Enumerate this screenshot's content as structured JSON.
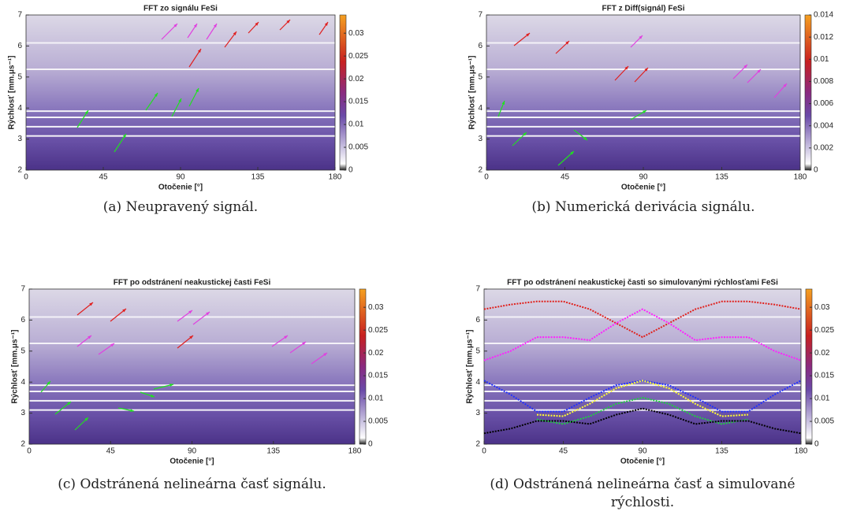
{
  "chart_data": [
    {
      "type": "heatmap",
      "title": "FFT zo signálu FeSi",
      "xlabel": "Otočenie [°]",
      "ylabel": "Rýchlosť [mm.μs⁻¹]",
      "xlim": [
        0,
        180
      ],
      "xticks": [
        0,
        45,
        90,
        135,
        180
      ],
      "ylim": [
        2,
        7
      ],
      "yticks": [
        2,
        3,
        4,
        5,
        6,
        7
      ],
      "clim": [
        0,
        0.034
      ],
      "cticks": [
        0,
        0.005,
        0.01,
        0.015,
        0.02,
        0.025,
        0.03
      ],
      "caption": "(a) Neupravený signál."
    },
    {
      "type": "heatmap",
      "title": "FFT z Diff(signál) FeSi",
      "xlabel": "Otočenie [°]",
      "ylabel": "Rýchlosť [mm.μs⁻¹]",
      "xlim": [
        0,
        180
      ],
      "xticks": [
        0,
        45,
        90,
        135,
        180
      ],
      "ylim": [
        2,
        7
      ],
      "yticks": [
        2,
        3,
        4,
        5,
        6,
        7
      ],
      "clim": [
        0,
        0.014
      ],
      "cticks": [
        0,
        0.002,
        0.004,
        0.006,
        0.008,
        0.01,
        0.012,
        0.014
      ],
      "caption": "(b) Numerická derivácia signálu."
    },
    {
      "type": "heatmap",
      "title": "FFT po odstránení neakustickej časti FeSi",
      "xlabel": "Otočenie [°]",
      "ylabel": "Rýchlosť [mm.μs⁻¹]",
      "xlim": [
        0,
        180
      ],
      "xticks": [
        0,
        45,
        90,
        135,
        180
      ],
      "ylim": [
        2,
        7
      ],
      "yticks": [
        2,
        3,
        4,
        5,
        6,
        7
      ],
      "clim": [
        0,
        0.034
      ],
      "cticks": [
        0,
        0.005,
        0.01,
        0.015,
        0.02,
        0.025,
        0.03
      ],
      "caption": "(c) Odstránená nelineárna časť signálu."
    },
    {
      "type": "heatmap",
      "title": "FFT po odstránení neakustickej časti so simulovanými rýchlosťami FeSi",
      "xlabel": "Otočenie [°]",
      "ylabel": "Rýchlosť [mm.μs⁻¹]",
      "xlim": [
        0,
        180
      ],
      "xticks": [
        0,
        45,
        90,
        135,
        180
      ],
      "ylim": [
        2,
        7
      ],
      "yticks": [
        2,
        3,
        4,
        5,
        6,
        7
      ],
      "clim": [
        0,
        0.034
      ],
      "cticks": [
        0,
        0.005,
        0.01,
        0.015,
        0.02,
        0.025,
        0.03
      ],
      "caption": "(d) Odstránená nelineárna časť a simulované rýchlosti.",
      "x": [
        0,
        15,
        30,
        45,
        60,
        75,
        90,
        105,
        120,
        135,
        150,
        165,
        180
      ],
      "series": [
        {
          "color": "#e0201c",
          "values": [
            6.35,
            6.5,
            6.6,
            6.6,
            6.35,
            5.9,
            5.45,
            5.9,
            6.35,
            6.6,
            6.6,
            6.5,
            6.35
          ]
        },
        {
          "color": "#ff20ff",
          "values": [
            4.7,
            5.0,
            5.45,
            5.45,
            5.35,
            5.9,
            6.35,
            5.9,
            5.35,
            5.45,
            5.45,
            5.0,
            4.7
          ]
        },
        {
          "color": "#2030ff",
          "values": [
            4.05,
            3.6,
            3.05,
            3.05,
            3.5,
            3.9,
            4.05,
            3.9,
            3.5,
            3.05,
            3.05,
            3.6,
            4.05
          ]
        },
        {
          "color": "#ffff30",
          "values": [
            null,
            null,
            2.95,
            2.9,
            3.3,
            3.8,
            4.05,
            3.8,
            3.3,
            2.9,
            2.95,
            null,
            null
          ]
        },
        {
          "color": "#20d040",
          "values": [
            null,
            null,
            2.8,
            2.65,
            2.9,
            3.3,
            3.5,
            3.3,
            2.9,
            2.65,
            2.8,
            null,
            null
          ]
        },
        {
          "color": "#000000",
          "values": [
            2.35,
            2.5,
            2.75,
            2.75,
            2.65,
            2.95,
            3.15,
            2.95,
            2.65,
            2.75,
            2.75,
            2.5,
            2.35
          ]
        }
      ]
    }
  ]
}
